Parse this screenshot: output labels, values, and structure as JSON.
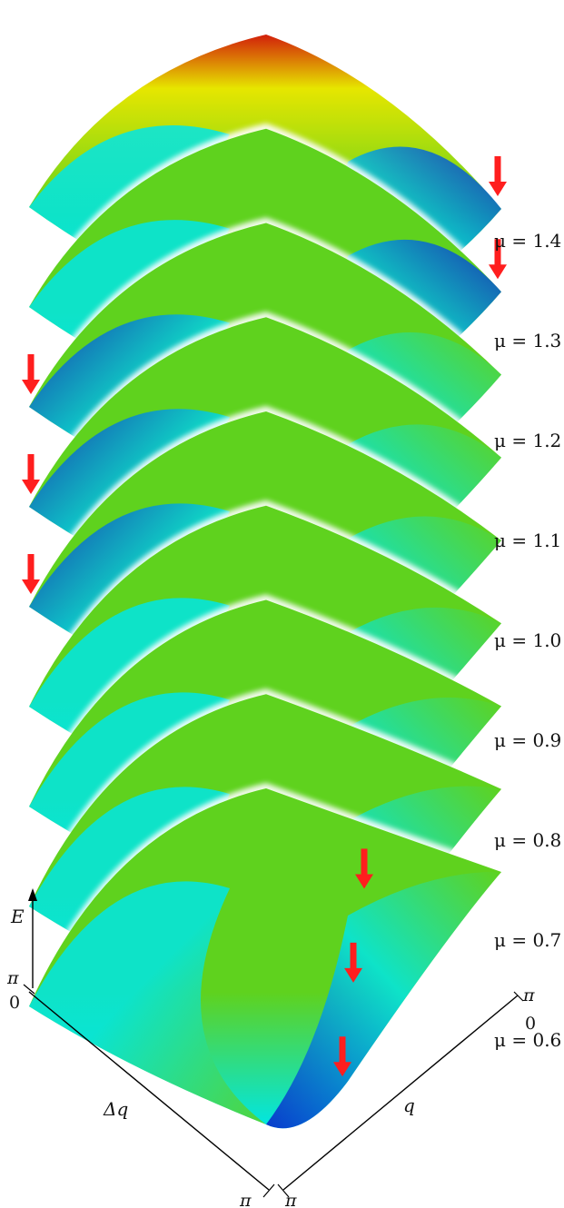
{
  "surfaces": [
    {
      "mu_label": "μ = 1.4",
      "min_corner": "right"
    },
    {
      "mu_label": "μ = 1.3",
      "min_corner": "right"
    },
    {
      "mu_label": "μ = 1.2",
      "min_corner": "left"
    },
    {
      "mu_label": "μ = 1.1",
      "min_corner": "left"
    },
    {
      "mu_label": "μ = 1.0",
      "min_corner": "left"
    },
    {
      "mu_label": "μ = 0.9",
      "min_corner": "none"
    },
    {
      "mu_label": "μ = 0.8",
      "min_corner": "valley"
    },
    {
      "mu_label": "μ = 0.7",
      "min_corner": "valley"
    },
    {
      "mu_label": "μ = 0.6",
      "min_corner": "valley"
    }
  ],
  "axes": {
    "energy_label": "E",
    "delta_q_label": "Δq",
    "q_label": "q",
    "tick_pi": "π",
    "tick_zero": "0"
  },
  "colors": {
    "high": "#d21f0a",
    "mid_high": "#e6e600",
    "mid": "#5fd21e",
    "mid_low": "#00e6e6",
    "low": "#0a1ec8",
    "arrow": "#ff1e1e"
  }
}
